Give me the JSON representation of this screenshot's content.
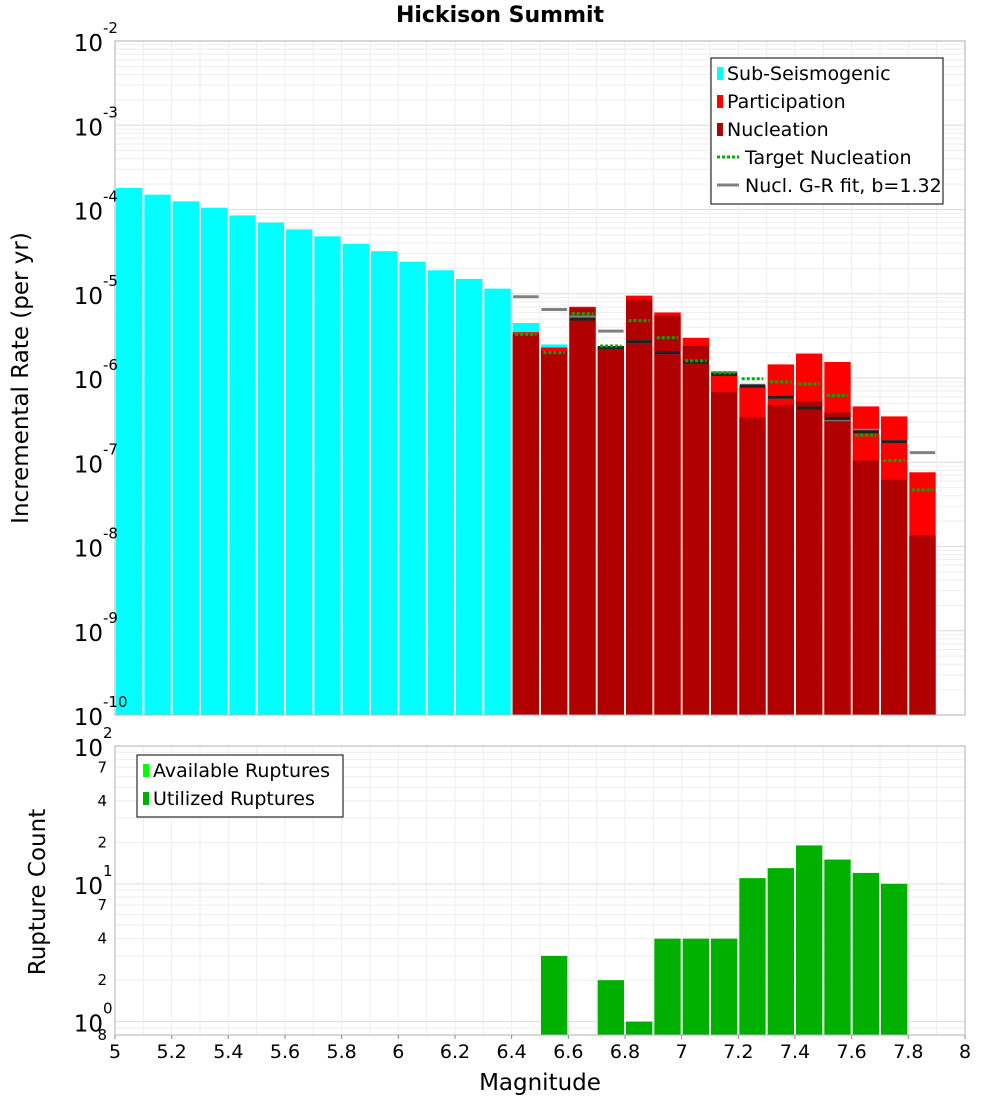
{
  "chart_data": [
    {
      "type": "bar",
      "title": "Hickison Summit",
      "xlabel": "",
      "ylabel": "Incremental Rate (per yr)",
      "yscale": "log",
      "ylim": [
        1e-10,
        0.01
      ],
      "xlim": [
        5,
        8
      ],
      "bin_width": 0.1,
      "y_tick_labels": [
        {
          "value": 1e-10,
          "base": "10",
          "exp": "-10"
        },
        {
          "value": 1e-09,
          "base": "10",
          "exp": "-9"
        },
        {
          "value": 1e-08,
          "base": "10",
          "exp": "-8"
        },
        {
          "value": 1e-07,
          "base": "10",
          "exp": "-7"
        },
        {
          "value": 1e-06,
          "base": "10",
          "exp": "-6"
        },
        {
          "value": 1e-05,
          "base": "10",
          "exp": "-5"
        },
        {
          "value": 0.0001,
          "base": "10",
          "exp": "-4"
        },
        {
          "value": 0.001,
          "base": "10",
          "exp": "-3"
        },
        {
          "value": 0.01,
          "base": "10",
          "exp": "-2"
        }
      ],
      "legend_position": "top-right",
      "legend": [
        {
          "label": "Sub-Seismogenic",
          "color": "#00ffff",
          "kind": "bar"
        },
        {
          "label": "Participation",
          "color": "#ff0000",
          "kind": "bar"
        },
        {
          "label": "Nucleation",
          "color": "#b00000",
          "kind": "bar"
        },
        {
          "label": "Target Nucleation",
          "color": "#00b000",
          "kind": "dotted"
        },
        {
          "label": "Nucl. G-R fit, b=1.32",
          "color": "#808080",
          "kind": "line"
        }
      ],
      "series": [
        {
          "name": "Sub-Seismogenic",
          "color": "#00ffff",
          "x": [
            5.05,
            5.15,
            5.25,
            5.35,
            5.45,
            5.55,
            5.65,
            5.75,
            5.85,
            5.95,
            6.05,
            6.15,
            6.25,
            6.35,
            6.45,
            6.55
          ],
          "values": [
            0.00018,
            0.00015,
            0.000125,
            0.000105,
            8.5e-05,
            7e-05,
            5.8e-05,
            4.8e-05,
            3.9e-05,
            3.2e-05,
            2.4e-05,
            1.9e-05,
            1.5e-05,
            1.15e-05,
            4.5e-06,
            2.5e-06
          ]
        },
        {
          "name": "Participation",
          "color": "#ff0000",
          "x": [
            6.45,
            6.55,
            6.65,
            6.75,
            6.85,
            6.95,
            7.05,
            7.15,
            7.25,
            7.35,
            7.45,
            7.55,
            7.65,
            7.75,
            7.85
          ],
          "values": [
            3.5e-06,
            2.3e-06,
            7e-06,
            2.4e-06,
            9.5e-06,
            6e-06,
            3e-06,
            1.2e-06,
            8e-07,
            1.45e-06,
            1.95e-06,
            1.55e-06,
            4.6e-07,
            3.5e-07,
            7.6e-08
          ]
        },
        {
          "name": "Nucleation",
          "color": "#b00000",
          "x": [
            6.45,
            6.55,
            6.65,
            6.75,
            6.85,
            6.95,
            7.05,
            7.15,
            7.25,
            7.35,
            7.45,
            7.55,
            7.65,
            7.75,
            7.85
          ],
          "values": [
            3.3e-06,
            2.1e-06,
            6.8e-06,
            2.3e-06,
            8.5e-06,
            5.5e-06,
            2.4e-06,
            6.8e-07,
            3.4e-07,
            4.8e-07,
            5.3e-07,
            3.9e-07,
            1.05e-07,
            6.2e-08,
            1.35e-08
          ]
        },
        {
          "name": "Target Nucleation",
          "color": "#00b000",
          "x": [
            6.45,
            6.55,
            6.65,
            6.75,
            6.85,
            6.95,
            7.05,
            7.15,
            7.25,
            7.35,
            7.45,
            7.55,
            7.65,
            7.75,
            7.85
          ],
          "values": [
            3.3e-06,
            2e-06,
            5.8e-06,
            2.4e-06,
            4.8e-06,
            3e-06,
            1.6e-06,
            1.15e-06,
            9.8e-07,
            9e-07,
            8.5e-07,
            6.2e-07,
            2.1e-07,
            1.05e-07,
            4.7e-08
          ]
        },
        {
          "name": "Nucl. G-R fit, b=1.32",
          "color": "#808080",
          "x": [
            6.45,
            6.55,
            6.65,
            6.75,
            6.85,
            6.95,
            7.05,
            7.15,
            7.25,
            7.35,
            7.45,
            7.55,
            7.65,
            7.75,
            7.85
          ],
          "values": [
            9.2e-06,
            6.5e-06,
            5.3e-06,
            3.6e-06,
            2.7e-06,
            2e-06,
            1.55e-06,
            1.15e-06,
            8.2e-07,
            5.9e-07,
            4.4e-07,
            3.2e-07,
            2.4e-07,
            1.75e-07,
            1.3e-07
          ]
        },
        {
          "name": "Nucleation G-R (dark)",
          "color": "#202020",
          "x": [
            6.65,
            6.75,
            6.85,
            6.95,
            7.05,
            7.15,
            7.25,
            7.35,
            7.45,
            7.55,
            7.65,
            7.75
          ],
          "values": [
            5e-06,
            2.3e-06,
            2.7e-06,
            2e-06,
            1.55e-06,
            1.1e-06,
            8e-07,
            5.9e-07,
            4.4e-07,
            3.3e-07,
            2.3e-07,
            1.75e-07
          ]
        }
      ]
    },
    {
      "type": "bar",
      "xlabel": "Magnitude",
      "ylabel": "Rupture Count",
      "yscale": "log",
      "ylim": [
        0.8,
        100
      ],
      "xlim": [
        5,
        8
      ],
      "x_ticks": [
        "5",
        "5.2",
        "5.4",
        "5.6",
        "5.8",
        "6",
        "6.2",
        "6.4",
        "6.6",
        "6.8",
        "7",
        "7.2",
        "7.4",
        "7.6",
        "7.8",
        "8"
      ],
      "y_tick_labels": [
        {
          "value": 1,
          "base": "10",
          "exp": "0"
        },
        {
          "value": 10,
          "base": "10",
          "exp": "1"
        },
        {
          "value": 100,
          "base": "10",
          "exp": "2"
        }
      ],
      "y_minor_labels": [
        {
          "value": 0.8,
          "label": "8"
        },
        {
          "value": 2,
          "label": "2"
        },
        {
          "value": 4,
          "label": "4"
        },
        {
          "value": 7,
          "label": "7"
        },
        {
          "value": 20,
          "label": "2"
        },
        {
          "value": 40,
          "label": "4"
        },
        {
          "value": 70,
          "label": "7"
        }
      ],
      "legend_position": "top-left",
      "legend": [
        {
          "label": "Available Ruptures",
          "color": "#00ff00",
          "kind": "bar"
        },
        {
          "label": "Utilized Ruptures",
          "color": "#00b000",
          "kind": "bar"
        }
      ],
      "series": [
        {
          "name": "Utilized Ruptures",
          "color": "#00b000",
          "x": [
            6.55,
            6.75,
            6.85,
            6.95,
            7.05,
            7.15,
            7.25,
            7.35,
            7.45,
            7.55,
            7.65,
            7.75
          ],
          "values": [
            3,
            2,
            1,
            4,
            4,
            4,
            11,
            13,
            19,
            15,
            12,
            10
          ]
        }
      ]
    }
  ]
}
